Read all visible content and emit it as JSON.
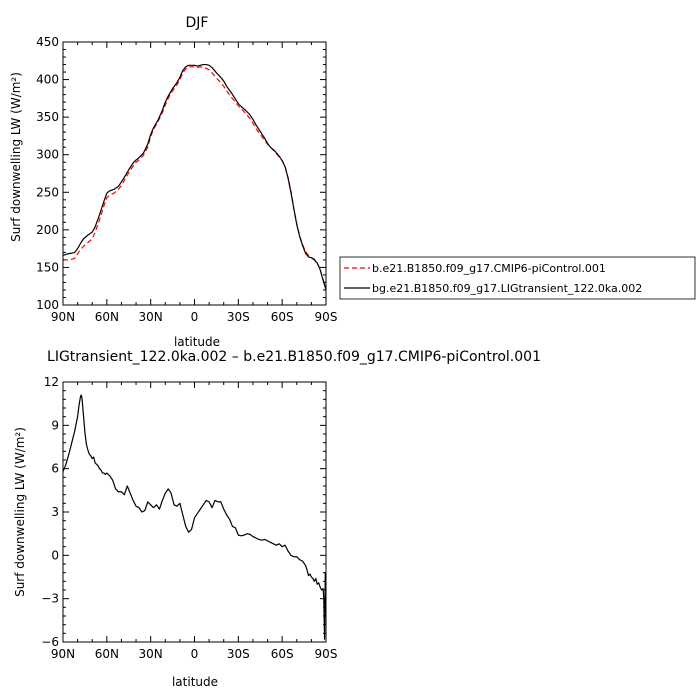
{
  "chart_data": [
    {
      "type": "line",
      "title": "DJF",
      "xlabel": "latitude",
      "ylabel": "Surf downwelling LW (W/m²)",
      "xlim": [
        90,
        -90
      ],
      "ylim": [
        100,
        450
      ],
      "xticks": [
        "90N",
        "60N",
        "30N",
        "0",
        "30S",
        "60S",
        "90S"
      ],
      "yticks": [
        "100",
        "150",
        "200",
        "250",
        "300",
        "350",
        "400",
        "450"
      ],
      "legend_position": "right",
      "series": [
        {
          "name": "b.e21.B1850.f09_g17.CMIP6-piControl.001",
          "color": "#ff0000",
          "dash": "dashed",
          "x": [
            90,
            87,
            84,
            82,
            80,
            78,
            76,
            73,
            70,
            68,
            65,
            62,
            60,
            58,
            55,
            52,
            50,
            48,
            45,
            42,
            40,
            38,
            35,
            32,
            30,
            28,
            25,
            22,
            20,
            18,
            15,
            12,
            10,
            8,
            6,
            4,
            2,
            0,
            -2,
            -4,
            -6,
            -8,
            -10,
            -12,
            -15,
            -18,
            -20,
            -22,
            -25,
            -28,
            -30,
            -32,
            -35,
            -38,
            -40,
            -42,
            -45,
            -48,
            -50,
            -52,
            -55,
            -58,
            -60,
            -62,
            -64,
            -66,
            -68,
            -70,
            -72,
            -74,
            -76,
            -78,
            -80,
            -82,
            -84,
            -86,
            -88,
            -90
          ],
          "y": [
            160,
            160,
            161,
            162,
            168,
            174,
            178,
            183,
            188,
            197,
            213,
            232,
            243,
            246,
            249,
            254,
            259,
            266,
            276,
            285,
            290,
            293,
            299,
            310,
            324,
            334,
            344,
            356,
            366,
            375,
            385,
            393,
            400,
            409,
            414,
            417,
            417,
            417,
            416,
            417,
            416,
            415,
            413,
            409,
            402,
            396,
            391,
            385,
            377,
            370,
            365,
            361,
            355,
            348,
            342,
            335,
            327,
            319,
            314,
            310,
            304,
            297,
            292,
            284,
            270,
            251,
            228,
            208,
            192,
            180,
            171,
            166,
            163,
            161,
            156,
            147,
            134,
            123
          ]
        },
        {
          "name": "bg.e21.B1850.f09_g17.LIGtransient_122.0ka.002",
          "color": "#000000",
          "dash": "solid",
          "x": [
            90,
            87,
            84,
            82,
            80,
            78,
            76,
            73,
            70,
            68,
            65,
            62,
            60,
            58,
            55,
            52,
            50,
            48,
            45,
            42,
            40,
            38,
            35,
            32,
            30,
            28,
            25,
            22,
            20,
            18,
            15,
            12,
            10,
            8,
            6,
            4,
            2,
            0,
            -2,
            -4,
            -6,
            -8,
            -10,
            -12,
            -15,
            -18,
            -20,
            -22,
            -25,
            -28,
            -30,
            -32,
            -35,
            -38,
            -40,
            -42,
            -45,
            -48,
            -50,
            -52,
            -55,
            -58,
            -60,
            -62,
            -64,
            -66,
            -68,
            -70,
            -72,
            -74,
            -76,
            -78,
            -80,
            -82,
            -84,
            -86,
            -88,
            -90
          ],
          "y": [
            166,
            168,
            169,
            170,
            175,
            182,
            188,
            193,
            197,
            204,
            220,
            238,
            249,
            252,
            254,
            258,
            264,
            270,
            280,
            289,
            293,
            296,
            302,
            314,
            327,
            336,
            346,
            359,
            370,
            378,
            388,
            396,
            403,
            412,
            417,
            419,
            419,
            419,
            418,
            419,
            420,
            420,
            419,
            416,
            409,
            403,
            398,
            391,
            383,
            374,
            368,
            364,
            359,
            353,
            347,
            340,
            331,
            322,
            315,
            310,
            305,
            298,
            292,
            284,
            269,
            250,
            228,
            207,
            191,
            179,
            169,
            164,
            163,
            160,
            156,
            147,
            133,
            120
          ]
        }
      ]
    },
    {
      "type": "line",
      "title": "LIGtransient_122.0ka.002 – b.e21.B1850.f09_g17.CMIP6-piControl.001",
      "xlabel": "latitude",
      "ylabel": "Surf downwelling LW (W/m²)",
      "xlim": [
        90,
        -90
      ],
      "ylim": [
        -6,
        12
      ],
      "xticks": [
        "90N",
        "60N",
        "30N",
        "0",
        "30S",
        "60S",
        "90S"
      ],
      "yticks": [
        "-6",
        "-3",
        "0",
        "3",
        "6",
        "9",
        "12"
      ],
      "series": [
        {
          "color": "#000000",
          "x": [
            90,
            88,
            86,
            84,
            82,
            80,
            79,
            78,
            77.5,
            77,
            76,
            75,
            74,
            73,
            72,
            71,
            70,
            69,
            68,
            67,
            66,
            65,
            64,
            63,
            62,
            61,
            60,
            58,
            56,
            54,
            52,
            50,
            48,
            46,
            44,
            42,
            40,
            38,
            36,
            34,
            32,
            30,
            28,
            26,
            24,
            22,
            20,
            18,
            16,
            14,
            12,
            10,
            8,
            6,
            4,
            2,
            0,
            -2,
            -4,
            -6,
            -8,
            -10,
            -12,
            -14,
            -16,
            -18,
            -20,
            -22,
            -24,
            -26,
            -28,
            -30,
            -32,
            -34,
            -36,
            -38,
            -40,
            -42,
            -44,
            -46,
            -48,
            -50,
            -52,
            -54,
            -56,
            -58,
            -60,
            -62,
            -63,
            -64,
            -66,
            -68,
            -70,
            -72,
            -74,
            -76,
            -77,
            -78,
            -79,
            -80,
            -81,
            -82,
            -83,
            -84,
            -85,
            -86,
            -87,
            -88,
            -88.5,
            -89,
            -89.5,
            -90
          ],
          "y": [
            5.8,
            6.3,
            7.0,
            7.8,
            8.6,
            9.6,
            10.4,
            11.0,
            11.1,
            10.9,
            9.7,
            8.5,
            7.7,
            7.3,
            7.0,
            6.9,
            6.7,
            6.8,
            6.4,
            6.3,
            6.2,
            6.0,
            5.9,
            5.7,
            5.7,
            5.6,
            5.7,
            5.5,
            5.2,
            4.6,
            4.4,
            4.4,
            4.2,
            4.8,
            4.3,
            3.8,
            3.4,
            3.3,
            3.0,
            3.1,
            3.7,
            3.5,
            3.3,
            3.5,
            3.2,
            3.8,
            4.3,
            4.6,
            4.3,
            3.5,
            3.4,
            3.6,
            2.8,
            2.0,
            1.6,
            1.8,
            2.6,
            2.9,
            3.2,
            3.5,
            3.8,
            3.7,
            3.3,
            3.8,
            3.7,
            3.7,
            3.2,
            2.8,
            2.5,
            2.0,
            1.9,
            1.4,
            1.35,
            1.4,
            1.5,
            1.45,
            1.3,
            1.2,
            1.1,
            1.05,
            1.1,
            1.0,
            0.9,
            0.8,
            0.7,
            0.8,
            0.6,
            0.7,
            0.5,
            0.3,
            0.0,
            -0.1,
            -0.1,
            -0.3,
            -0.4,
            -0.7,
            -1.0,
            -1.4,
            -1.3,
            -1.5,
            -1.6,
            -1.8,
            -1.6,
            -2.0,
            -1.9,
            -2.2,
            -2.4,
            -2.3,
            -3.0,
            -5.8,
            -1.2,
            -2.0
          ]
        }
      ]
    }
  ]
}
